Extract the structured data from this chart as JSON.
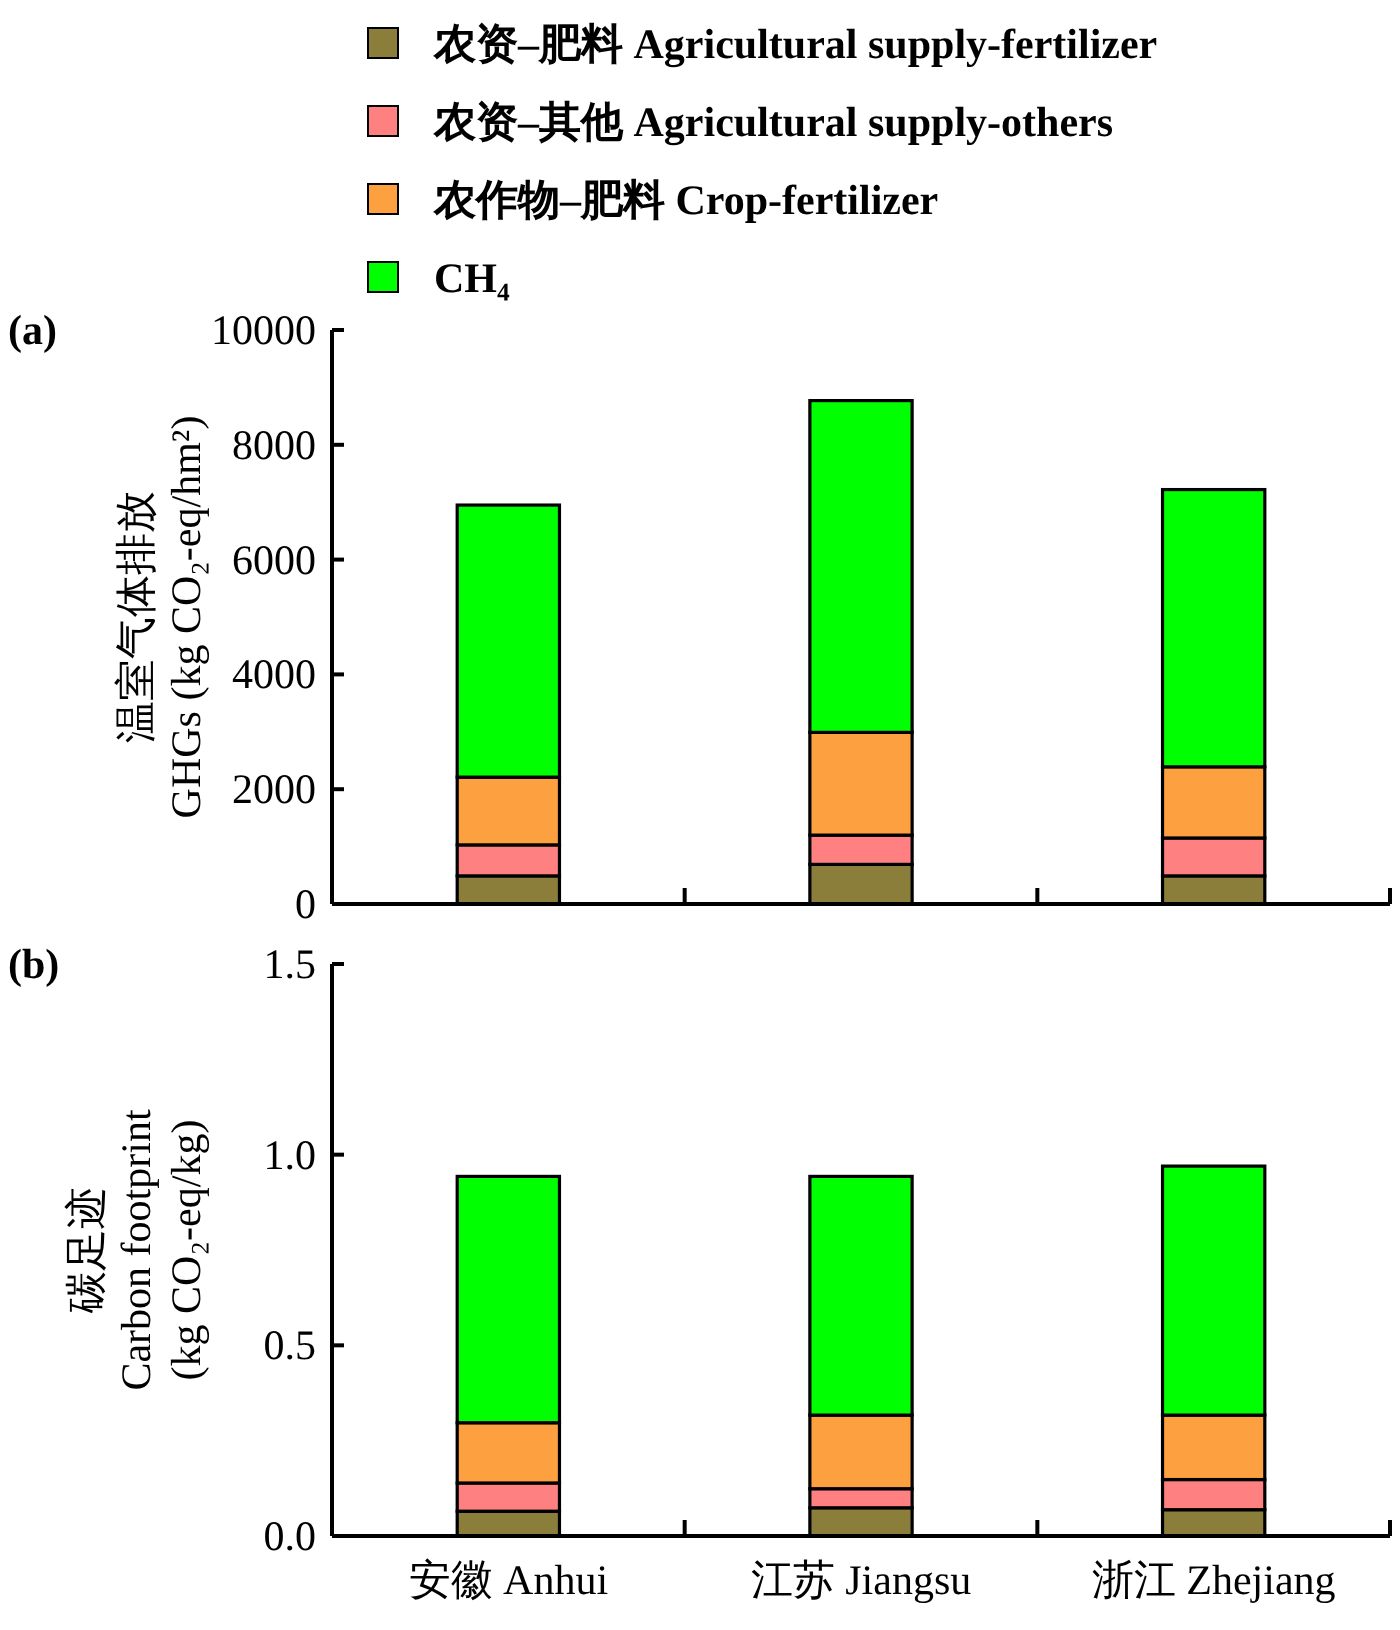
{
  "chart_data": [
    {
      "type": "bar",
      "stacked": true,
      "title": "(a)",
      "ylabel": "温室气体排放\nGHGs (kg CO₂-eq/hm²)",
      "categories": [
        null,
        null,
        null
      ],
      "tick_labels": "y",
      "legend": "top",
      "grid": false,
      "ylim": [
        0,
        10000
      ],
      "yticks": [
        0,
        2000,
        4000,
        6000,
        8000,
        10000
      ],
      "series": [
        {
          "name": "农资–肥料 Agricultural supply-fertilizer",
          "color": "#8b7d3a",
          "values": [
            490,
            690,
            490
          ]
        },
        {
          "name": "农资–其他 Agricultural supply-others",
          "color": "#fe8080",
          "values": [
            540,
            510,
            660
          ]
        },
        {
          "name": "农作物–肥料 Crop-fertilizer",
          "color": "#fda040",
          "values": [
            1180,
            1790,
            1240
          ]
        },
        {
          "name": "CH₄",
          "color": "#00ff00",
          "values": [
            4740,
            5780,
            4830
          ]
        }
      ]
    },
    {
      "type": "bar",
      "stacked": true,
      "title": "(b)",
      "ylabel": "碳足迹\nCarbon footprint\n(kg CO₂-eq/kg)",
      "categories": [
        "安徽 Anhui",
        "江苏 Jiangsu",
        "浙江 Zhejiang"
      ],
      "grid": false,
      "ylim": [
        0,
        1.5
      ],
      "yticks": [
        {
          "value": 0,
          "label": "0.0"
        },
        0.5,
        {
          "value": 1,
          "label": "1.0"
        },
        1.5
      ],
      "series": [
        {
          "color": "#8b7d3a",
          "values": [
            0.065,
            0.074,
            0.069
          ]
        },
        {
          "color": "#fe8080",
          "values": [
            0.074,
            0.05,
            0.079
          ]
        },
        {
          "color": "#fda040",
          "values": [
            0.158,
            0.193,
            0.169
          ]
        },
        {
          "color": "#00ff00",
          "values": [
            0.646,
            0.626,
            0.653
          ]
        }
      ]
    }
  ]
}
